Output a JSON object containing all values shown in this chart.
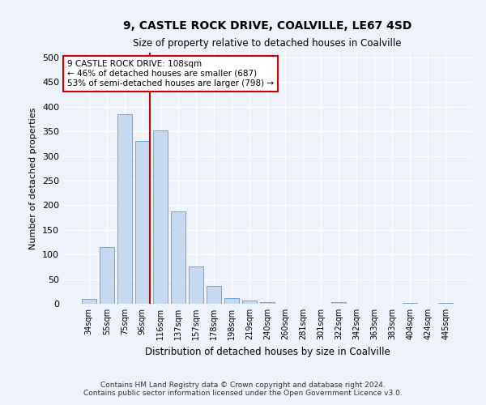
{
  "title": "9, CASTLE ROCK DRIVE, COALVILLE, LE67 4SD",
  "subtitle": "Size of property relative to detached houses in Coalville",
  "xlabel": "Distribution of detached houses by size in Coalville",
  "ylabel": "Number of detached properties",
  "categories": [
    "34sqm",
    "55sqm",
    "75sqm",
    "96sqm",
    "116sqm",
    "137sqm",
    "157sqm",
    "178sqm",
    "198sqm",
    "219sqm",
    "240sqm",
    "260sqm",
    "281sqm",
    "301sqm",
    "322sqm",
    "342sqm",
    "363sqm",
    "383sqm",
    "404sqm",
    "424sqm",
    "445sqm"
  ],
  "values": [
    10,
    115,
    385,
    330,
    352,
    188,
    76,
    37,
    12,
    6,
    4,
    0,
    0,
    0,
    3,
    0,
    0,
    0,
    2,
    0,
    1
  ],
  "bar_color": "#c5d9f0",
  "bar_edge_color": "#5b9bd5",
  "background_color": "#eef2fb",
  "grid_color": "#ffffff",
  "vline_color": "#cc0000",
  "annotation_text": "9 CASTLE ROCK DRIVE: 108sqm\n← 46% of detached houses are smaller (687)\n53% of semi-detached houses are larger (798) →",
  "annotation_box_color": "#ffffff",
  "annotation_box_edge": "#cc0000",
  "footer_text": "Contains HM Land Registry data © Crown copyright and database right 2024.\nContains public sector information licensed under the Open Government Licence v3.0.",
  "ylim": [
    0,
    510
  ],
  "yticks": [
    0,
    50,
    100,
    150,
    200,
    250,
    300,
    350,
    400,
    450,
    500
  ]
}
